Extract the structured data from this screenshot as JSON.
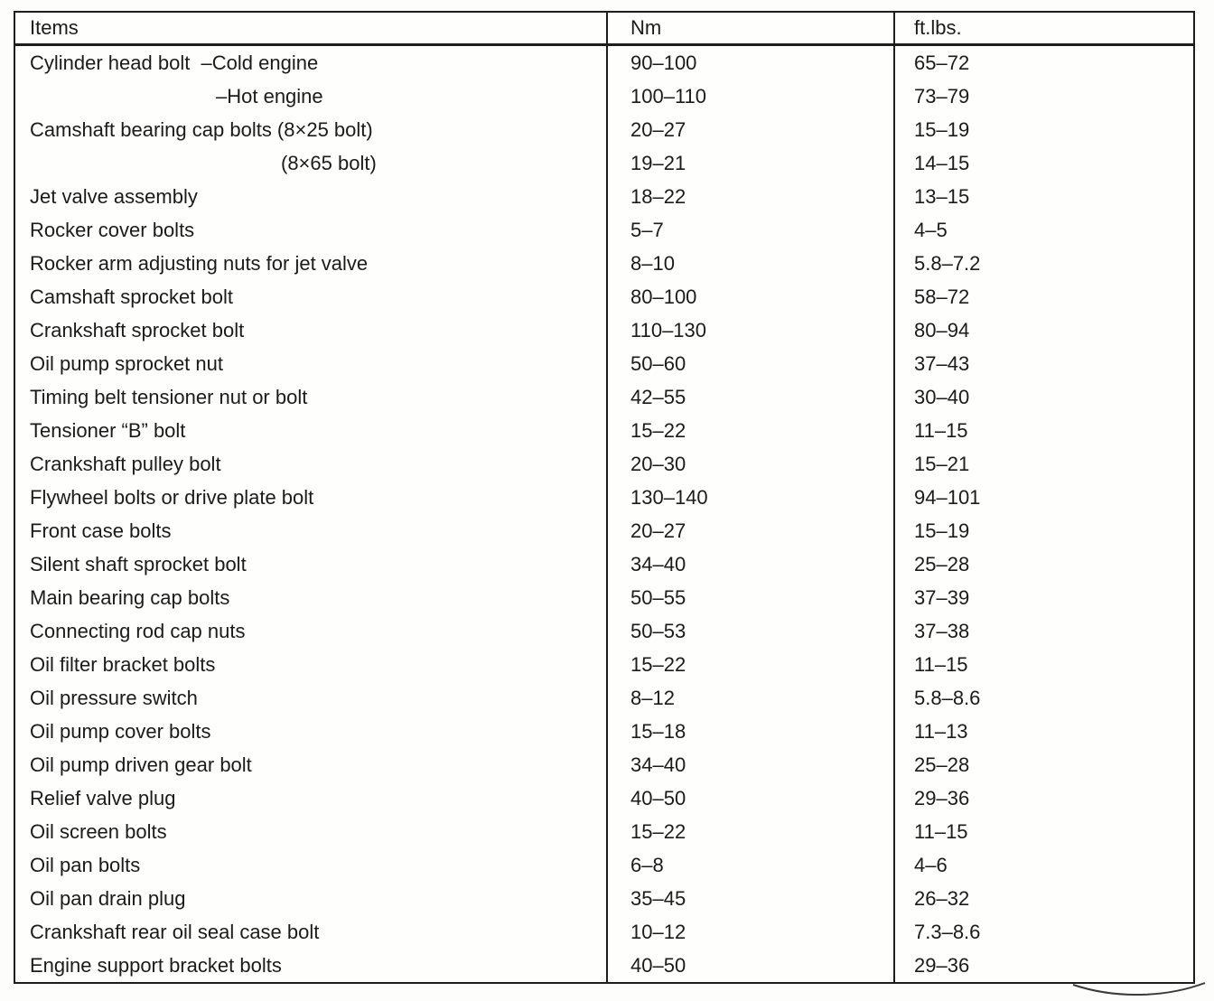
{
  "document": {
    "table": {
      "columns": [
        "Items",
        "Nm",
        "ft.lbs."
      ],
      "rows": [
        {
          "item": "Cylinder head bolt  –Cold engine",
          "nm": "90–100",
          "ftlbs": "65–72",
          "indent": 0
        },
        {
          "item": "–Hot engine",
          "nm": "100–110",
          "ftlbs": "73–79",
          "indent": 206
        },
        {
          "item": "Camshaft bearing cap bolts (8×25 bolt)",
          "nm": "20–27",
          "ftlbs": "15–19",
          "indent": 0
        },
        {
          "item": "(8×65 bolt)",
          "nm": "19–21",
          "ftlbs": "14–15",
          "indent": 278
        },
        {
          "item": "Jet valve assembly",
          "nm": "18–22",
          "ftlbs": "13–15",
          "indent": 0
        },
        {
          "item": "Rocker cover bolts",
          "nm": "5–7",
          "ftlbs": "4–5",
          "indent": 0
        },
        {
          "item": "Rocker arm adjusting nuts for jet valve",
          "nm": "8–10",
          "ftlbs": "5.8–7.2",
          "indent": 0
        },
        {
          "item": "Camshaft sprocket bolt",
          "nm": "80–100",
          "ftlbs": "58–72",
          "indent": 0
        },
        {
          "item": "Crankshaft sprocket bolt",
          "nm": "110–130",
          "ftlbs": "80–94",
          "indent": 0
        },
        {
          "item": "Oil pump sprocket nut",
          "nm": "50–60",
          "ftlbs": "37–43",
          "indent": 0
        },
        {
          "item": "Timing belt tensioner nut or bolt",
          "nm": "42–55",
          "ftlbs": "30–40",
          "indent": 0
        },
        {
          "item": "Tensioner “B” bolt",
          "nm": "15–22",
          "ftlbs": "11–15",
          "indent": 0
        },
        {
          "item": "Crankshaft pulley bolt",
          "nm": "20–30",
          "ftlbs": "15–21",
          "indent": 0
        },
        {
          "item": "Flywheel bolts or drive plate bolt",
          "nm": "130–140",
          "ftlbs": "94–101",
          "indent": 0
        },
        {
          "item": "Front case bolts",
          "nm": "20–27",
          "ftlbs": "15–19",
          "indent": 0
        },
        {
          "item": "Silent shaft sprocket bolt",
          "nm": "34–40",
          "ftlbs": "25–28",
          "indent": 0
        },
        {
          "item": "Main bearing cap bolts",
          "nm": "50–55",
          "ftlbs": "37–39",
          "indent": 0
        },
        {
          "item": "Connecting rod cap nuts",
          "nm": "50–53",
          "ftlbs": "37–38",
          "indent": 0
        },
        {
          "item": "Oil filter bracket bolts",
          "nm": "15–22",
          "ftlbs": "11–15",
          "indent": 0
        },
        {
          "item": "Oil pressure switch",
          "nm": "8–12",
          "ftlbs": "5.8–8.6",
          "indent": 0
        },
        {
          "item": "Oil pump cover bolts",
          "nm": "15–18",
          "ftlbs": "11–13",
          "indent": 0
        },
        {
          "item": "Oil pump driven gear bolt",
          "nm": "34–40",
          "ftlbs": "25–28",
          "indent": 0
        },
        {
          "item": "Relief valve plug",
          "nm": "40–50",
          "ftlbs": "29–36",
          "indent": 0
        },
        {
          "item": "Oil screen bolts",
          "nm": "15–22",
          "ftlbs": "11–15",
          "indent": 0
        },
        {
          "item": "Oil pan bolts",
          "nm": "6–8",
          "ftlbs": "4–6",
          "indent": 0
        },
        {
          "item": "Oil pan drain plug",
          "nm": "35–45",
          "ftlbs": "26–32",
          "indent": 0
        },
        {
          "item": "Crankshaft rear oil seal case bolt",
          "nm": "10–12",
          "ftlbs": "7.3–8.6",
          "indent": 0
        },
        {
          "item": "Engine support bracket bolts",
          "nm": "40–50",
          "ftlbs": "29–36",
          "indent": 0
        }
      ]
    }
  }
}
